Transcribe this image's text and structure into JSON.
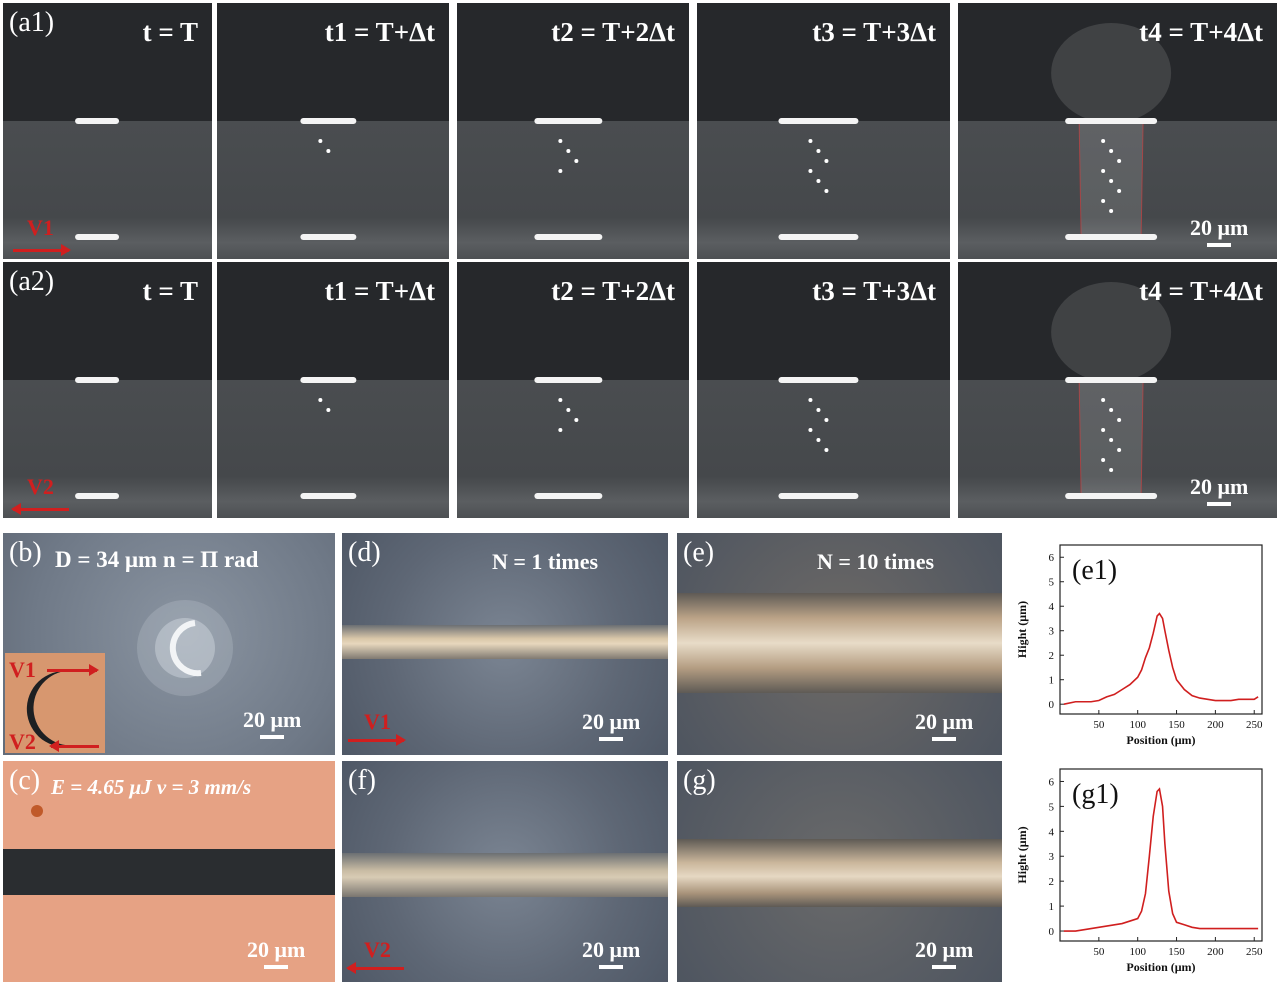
{
  "rows": [
    {
      "label": "(a1)",
      "velocity": "V1",
      "direction": "right",
      "scale": "20 μm",
      "frames": [
        "t = T",
        "t1 = T+Δt",
        "t2 = T+2Δt",
        "t3 = T+3Δt",
        "t4 = T+4Δt"
      ]
    },
    {
      "label": "(a2)",
      "velocity": "V2",
      "direction": "left",
      "scale": "20 μm",
      "frames": [
        "t = T",
        "t1 = T+Δt",
        "t2 = T+2Δt",
        "t3 = T+3Δt",
        "t4 = T+4Δt"
      ]
    }
  ],
  "panel_b": {
    "label": "(b)",
    "title": "D = 34 μm n = Π rad",
    "scale": "20 μm",
    "inset_top": "V1",
    "inset_bottom": "V2"
  },
  "panel_c": {
    "label": "(c)",
    "title": "E = 4.65 μJ v = 3 mm/s",
    "scale": "20 μm"
  },
  "panel_d": {
    "label": "(d)",
    "title": "N = 1 times",
    "scale": "20 μm",
    "velocity": "V1"
  },
  "panel_e": {
    "label": "(e)",
    "title": "N = 10 times",
    "scale": "20 μm"
  },
  "panel_f": {
    "label": "(f)",
    "scale": "20 μm",
    "velocity": "V2"
  },
  "panel_g": {
    "label": "(g)",
    "scale": "20 μm"
  },
  "colors": {
    "arrow": "#d01f1f",
    "profile": "#d01f1f"
  },
  "chart_data": [
    {
      "type": "line",
      "panel": "(e1)",
      "xlabel": "Position (μm)",
      "ylabel": "Hight (μm)",
      "xlim": [
        0,
        260
      ],
      "ylim": [
        -0.4,
        6.5
      ],
      "xticks": [
        "50",
        "100",
        "150",
        "200",
        "250"
      ],
      "yticks": [
        "0",
        "1",
        "2",
        "3",
        "4",
        "5",
        "6"
      ],
      "x": [
        5,
        20,
        30,
        40,
        50,
        60,
        70,
        80,
        90,
        100,
        105,
        110,
        115,
        120,
        125,
        128,
        132,
        135,
        140,
        145,
        150,
        160,
        170,
        180,
        190,
        200,
        210,
        220,
        230,
        240,
        250,
        255
      ],
      "y": [
        0.0,
        0.1,
        0.1,
        0.1,
        0.15,
        0.3,
        0.4,
        0.6,
        0.8,
        1.1,
        1.4,
        1.9,
        2.3,
        2.9,
        3.6,
        3.7,
        3.5,
        3.0,
        2.2,
        1.5,
        1.0,
        0.6,
        0.35,
        0.25,
        0.2,
        0.15,
        0.15,
        0.15,
        0.2,
        0.2,
        0.2,
        0.3
      ]
    },
    {
      "type": "line",
      "panel": "(g1)",
      "xlabel": "Position (μm)",
      "ylabel": "Hight (μm)",
      "xlim": [
        0,
        260
      ],
      "ylim": [
        -0.4,
        6.5
      ],
      "xticks": [
        "50",
        "100",
        "150",
        "200",
        "250"
      ],
      "yticks": [
        "0",
        "1",
        "2",
        "3",
        "4",
        "5",
        "6"
      ],
      "x": [
        5,
        20,
        30,
        40,
        50,
        60,
        70,
        80,
        90,
        100,
        105,
        110,
        115,
        120,
        125,
        128,
        132,
        135,
        140,
        145,
        150,
        160,
        170,
        180,
        190,
        200,
        210,
        220,
        230,
        240,
        250,
        255
      ],
      "y": [
        0.0,
        0.0,
        0.05,
        0.1,
        0.15,
        0.2,
        0.25,
        0.3,
        0.4,
        0.5,
        0.8,
        1.5,
        3.0,
        4.6,
        5.6,
        5.7,
        5.0,
        3.5,
        1.6,
        0.7,
        0.35,
        0.25,
        0.15,
        0.1,
        0.1,
        0.1,
        0.1,
        0.1,
        0.1,
        0.1,
        0.1,
        0.1
      ]
    }
  ]
}
